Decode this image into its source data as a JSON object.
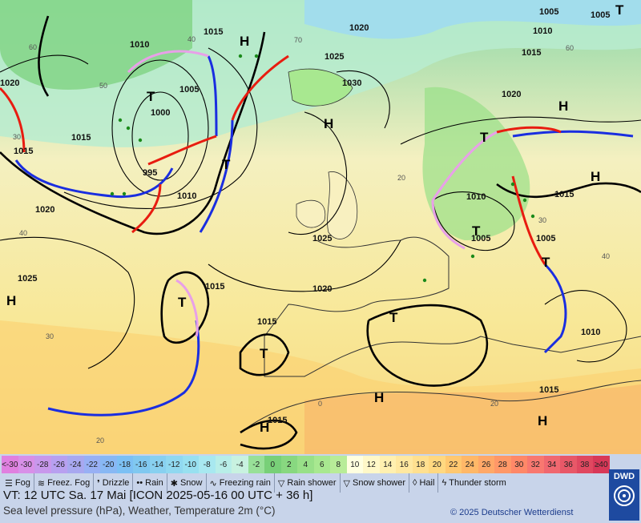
{
  "map": {
    "isobar_labels": [
      "1015",
      "1010",
      "1005",
      "1000",
      "995",
      "1020",
      "1025",
      "1030",
      "1025",
      "1020",
      "1015",
      "1010",
      "1005",
      "1005",
      "1015",
      "1010",
      "1015",
      "1015",
      "1020",
      "1025",
      "1020",
      "1015",
      "1015",
      "1010",
      "1005",
      "1010",
      "1015",
      "1020",
      "1005",
      "1015"
    ],
    "highs": [
      "H",
      "H",
      "H",
      "H",
      "H",
      "H",
      "H",
      "H"
    ],
    "lows": [
      "T",
      "T",
      "T",
      "T",
      "T",
      "T",
      "T",
      "T",
      "T"
    ],
    "temp_marks": [
      "60",
      "50",
      "40",
      "30",
      "20",
      "70",
      "60",
      "20",
      "40",
      "30",
      "20",
      "40",
      "30",
      "0"
    ],
    "colors": {
      "cold_front": "#1a2ee0",
      "warm_front": "#e81c10",
      "occlusion": "#e8a0e8",
      "isobar": "#000000"
    }
  },
  "legend": {
    "scale_values": [
      "<-30",
      "-30",
      "-28",
      "-26",
      "-24",
      "-22",
      "-20",
      "-18",
      "-16",
      "-14",
      "-12",
      "-10",
      "-8",
      "-6",
      "-4",
      "-2",
      "0",
      "2",
      "4",
      "6",
      "8",
      "10",
      "12",
      "14",
      "16",
      "18",
      "20",
      "22",
      "24",
      "26",
      "28",
      "30",
      "32",
      "34",
      "36",
      "38",
      "≥40"
    ],
    "scale_colors": [
      "#e080e0",
      "#d890e8",
      "#c898ec",
      "#b8a0f0",
      "#a8a8f0",
      "#98b0f4",
      "#88b8f4",
      "#7cc0f4",
      "#80c8f0",
      "#88d0f0",
      "#90d8f0",
      "#98e0f0",
      "#a8e8f0",
      "#b8eee8",
      "#c8f2e0",
      "#98e098",
      "#78d078",
      "#88d880",
      "#98e088",
      "#a8e890",
      "#b8ec98",
      "#ffffe0",
      "#fff8c8",
      "#fff0b0",
      "#ffe8a0",
      "#ffe090",
      "#ffd880",
      "#ffc870",
      "#ffb868",
      "#ffa868",
      "#ff9868",
      "#ff8868",
      "#f87870",
      "#f06870",
      "#e85868",
      "#e04860",
      "#d83858"
    ],
    "weather": [
      {
        "icon": "fog-icon",
        "label": "Fog"
      },
      {
        "icon": "freezing-fog-icon",
        "label": "Freez. Fog"
      },
      {
        "icon": "drizzle-icon",
        "label": "Drizzle"
      },
      {
        "icon": "rain-icon",
        "label": "Rain"
      },
      {
        "icon": "snow-icon",
        "label": "Snow"
      },
      {
        "icon": "freezing-rain-icon",
        "label": "Freezing rain"
      },
      {
        "icon": "rain-shower-icon",
        "label": "Rain shower"
      },
      {
        "icon": "snow-shower-icon",
        "label": "Snow shower"
      },
      {
        "icon": "hail-icon",
        "label": "Hail"
      },
      {
        "icon": "thunderstorm-icon",
        "label": "Thunder storm"
      }
    ],
    "vt": "VT: 12 UTC Sa.  17 Mai [ICON 2025-05-16  00 UTC + 36 h]",
    "subtitle": "Sea level pressure (hPa), Weather, Temperature 2m (°C)",
    "copyright": "© 2025 Deutscher Wetterdienst",
    "logo": "DWD"
  }
}
